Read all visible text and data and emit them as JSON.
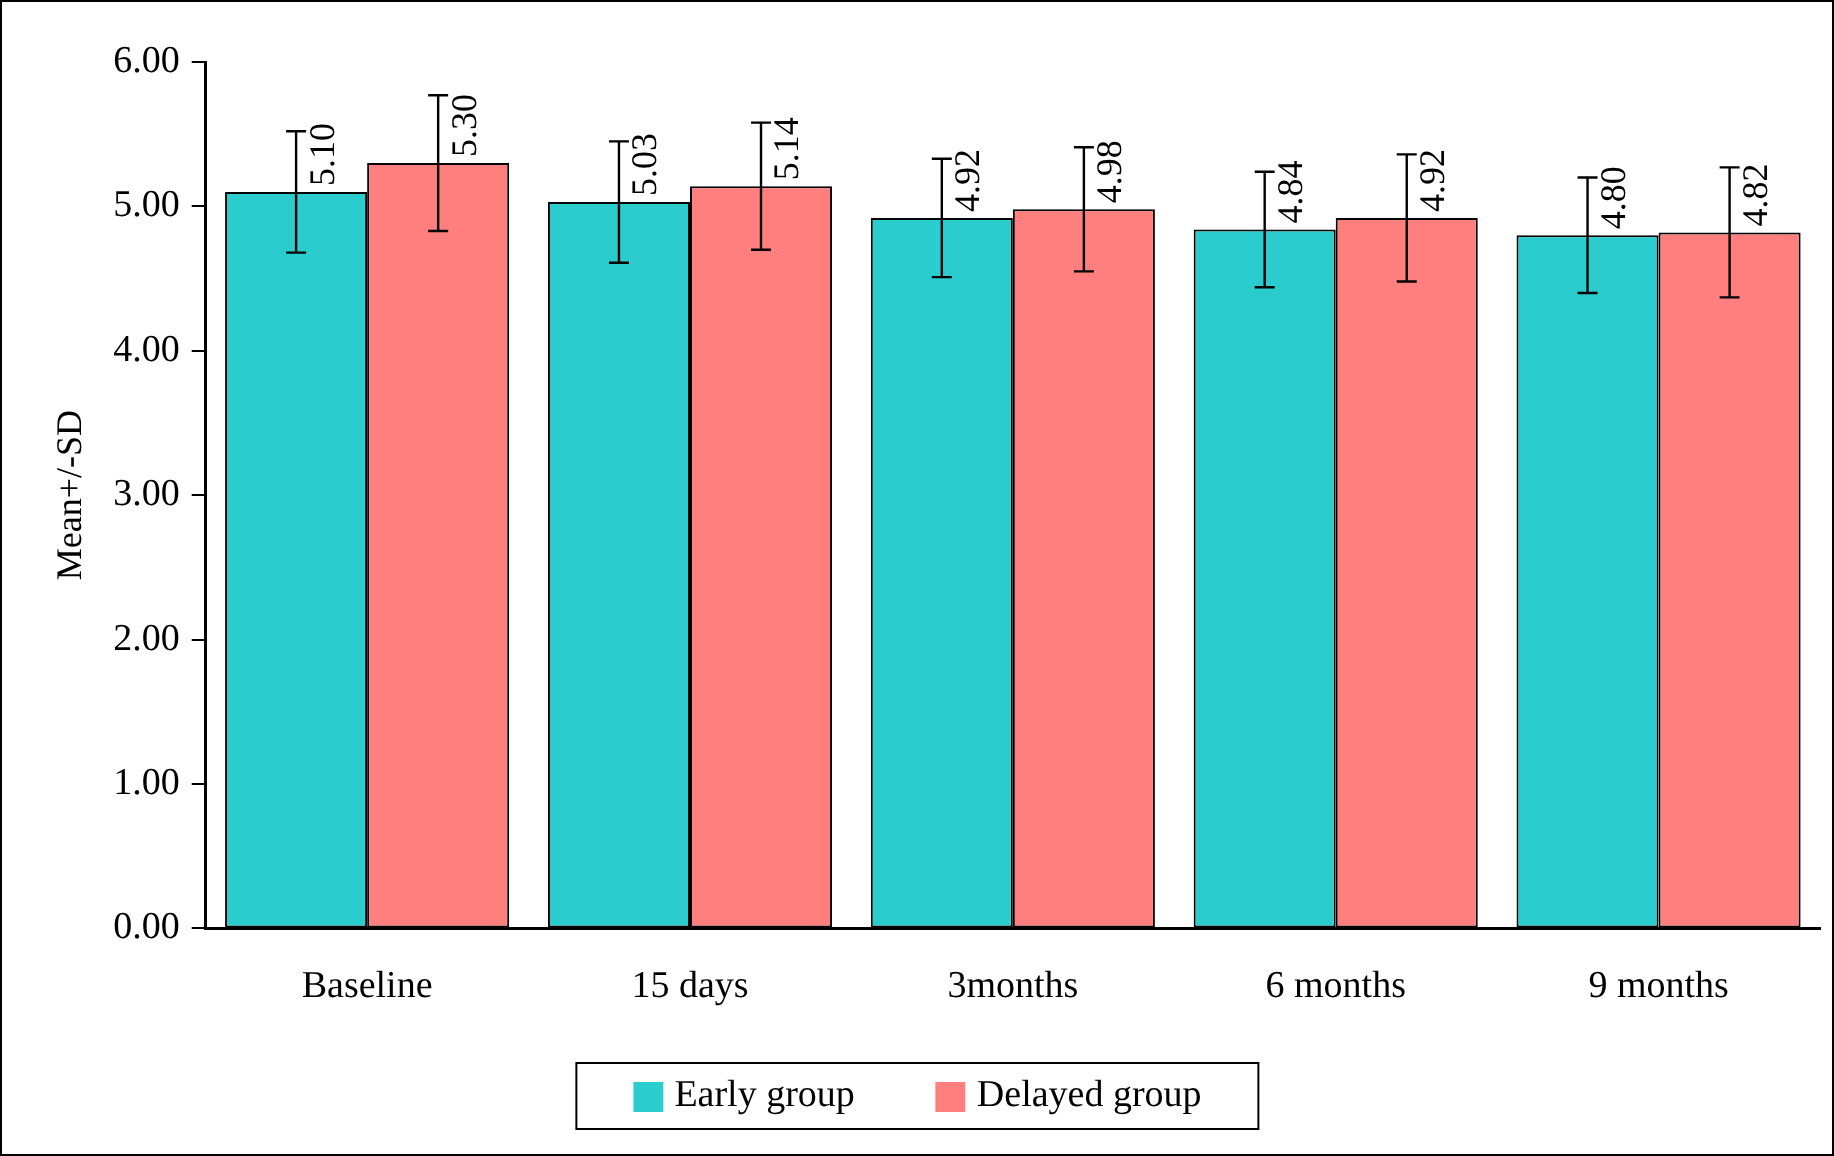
{
  "chart_data": {
    "type": "bar",
    "ylabel": "Mean+/-SD",
    "categories": [
      "Baseline",
      "15 days",
      "3months",
      "6 months",
      "9 months"
    ],
    "series": [
      {
        "name": "Early group",
        "color": "#2accce",
        "values": [
          5.1,
          5.03,
          4.92,
          4.84,
          4.8
        ],
        "value_labels": [
          "5.10",
          "5.03",
          "4.92",
          "4.84",
          "4.80"
        ],
        "errors": [
          0.42,
          0.42,
          0.41,
          0.4,
          0.4
        ]
      },
      {
        "name": "Delayed group",
        "color": "#ff7f7f",
        "values": [
          5.3,
          5.14,
          4.98,
          4.92,
          4.82
        ],
        "value_labels": [
          "5.30",
          "5.14",
          "4.98",
          "4.92",
          "4.82"
        ],
        "errors": [
          0.47,
          0.44,
          0.43,
          0.44,
          0.45
        ]
      }
    ],
    "ylim": [
      0,
      6
    ],
    "yticks": [
      {
        "value": 0,
        "label": "0.00"
      },
      {
        "value": 1,
        "label": "1.00"
      },
      {
        "value": 2,
        "label": "2.00"
      },
      {
        "value": 3,
        "label": "3.00"
      },
      {
        "value": 4,
        "label": "4.00"
      },
      {
        "value": 5,
        "label": "5.00"
      },
      {
        "value": 6,
        "label": "6.00"
      }
    ],
    "grid": false,
    "legend": "bottom"
  }
}
